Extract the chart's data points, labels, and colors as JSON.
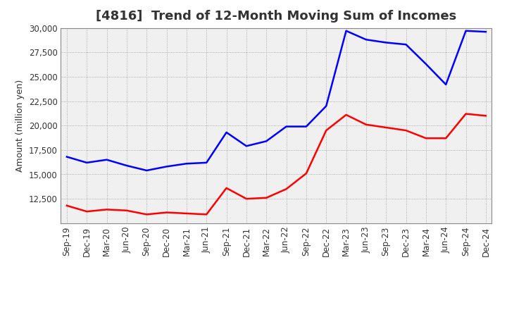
{
  "title": "[4816]  Trend of 12-Month Moving Sum of Incomes",
  "ylabel": "Amount (million yen)",
  "xlabels": [
    "Sep-19",
    "Dec-19",
    "Mar-20",
    "Jun-20",
    "Sep-20",
    "Dec-20",
    "Mar-21",
    "Jun-21",
    "Sep-21",
    "Dec-21",
    "Mar-22",
    "Jun-22",
    "Sep-22",
    "Dec-22",
    "Mar-23",
    "Jun-23",
    "Sep-23",
    "Dec-23",
    "Mar-24",
    "Jun-24",
    "Sep-24",
    "Dec-24"
  ],
  "ordinary_income": [
    16800,
    16200,
    16500,
    15900,
    15400,
    15800,
    16100,
    16200,
    19300,
    17900,
    18400,
    19900,
    19900,
    22000,
    29700,
    28800,
    28500,
    28300,
    26300,
    24200,
    29700,
    29600
  ],
  "net_income": [
    11800,
    11200,
    11400,
    11300,
    10900,
    11100,
    11000,
    10900,
    13600,
    12500,
    12600,
    13500,
    15100,
    19500,
    21100,
    20100,
    19800,
    19500,
    18700,
    18700,
    21200,
    21000
  ],
  "ordinary_color": "#0000ff",
  "net_color": "#ff0000",
  "line_width": 1.8,
  "ylim_min": 10000,
  "ylim_max": 30000,
  "yticks": [
    12500,
    15000,
    17500,
    20000,
    22500,
    25000,
    27500,
    30000
  ],
  "bg_color": "#ffffff",
  "plot_bg_color": "#f0f0f0",
  "grid_color": "#999999",
  "title_color": "#333333",
  "title_fontsize": 13,
  "axis_label_fontsize": 9,
  "tick_fontsize": 8.5,
  "legend_fontsize": 9.5
}
